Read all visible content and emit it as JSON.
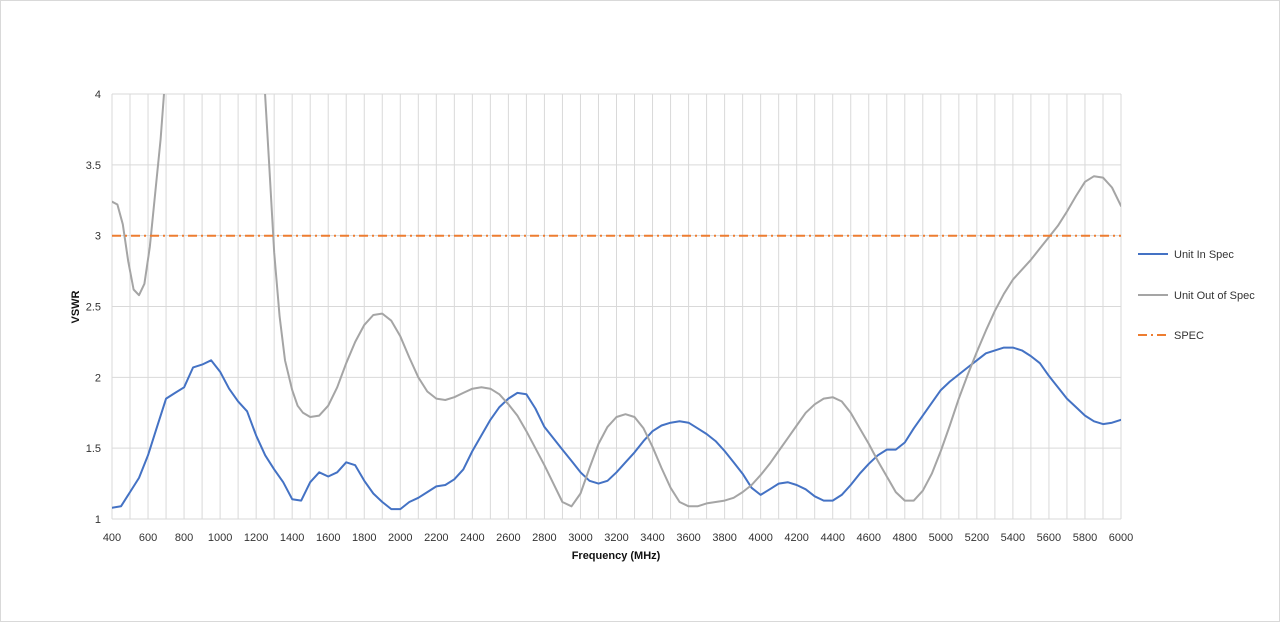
{
  "chart_data": {
    "type": "line",
    "title": "",
    "xlabel": "Frequency (MHz)",
    "ylabel": "VSWR",
    "xlim": [
      400,
      6000
    ],
    "ylim": [
      1,
      4
    ],
    "x_ticks": [
      400,
      600,
      800,
      1000,
      1200,
      1400,
      1600,
      1800,
      2000,
      2200,
      2400,
      2600,
      2800,
      3000,
      3200,
      3400,
      3600,
      3800,
      4000,
      4200,
      4400,
      4600,
      4800,
      5000,
      5200,
      5400,
      5600,
      5800,
      6000
    ],
    "x_tick_labels": [
      "400",
      "600",
      "800",
      "1000",
      "1200",
      "1400",
      "1600",
      "1800",
      "2000",
      "2200",
      "2400",
      "2600",
      "2800",
      "3000",
      "3200",
      "3400",
      "3600",
      "3800",
      "4000",
      "4200",
      "4400",
      "4600",
      "4800",
      "5000",
      "5200",
      "5400",
      "5600",
      "5800",
      "6000"
    ],
    "x_grid_step": 100,
    "y_ticks": [
      1,
      1.5,
      2,
      2.5,
      3,
      3.5,
      4
    ],
    "y_tick_labels": [
      "1",
      "1.5",
      "2",
      "2.5",
      "3",
      "3.5",
      "4"
    ],
    "grid": true,
    "legend_position": "right",
    "series": [
      {
        "name": "Unit In Spec",
        "color": "#4472C4",
        "style": "solid",
        "points": [
          [
            400,
            1.08
          ],
          [
            450,
            1.09
          ],
          [
            500,
            1.19
          ],
          [
            550,
            1.29
          ],
          [
            600,
            1.45
          ],
          [
            650,
            1.65
          ],
          [
            700,
            1.85
          ],
          [
            750,
            1.89
          ],
          [
            800,
            1.93
          ],
          [
            850,
            2.07
          ],
          [
            900,
            2.09
          ],
          [
            950,
            2.12
          ],
          [
            1000,
            2.04
          ],
          [
            1050,
            1.92
          ],
          [
            1100,
            1.83
          ],
          [
            1150,
            1.76
          ],
          [
            1200,
            1.59
          ],
          [
            1250,
            1.45
          ],
          [
            1300,
            1.35
          ],
          [
            1350,
            1.26
          ],
          [
            1400,
            1.14
          ],
          [
            1450,
            1.13
          ],
          [
            1500,
            1.26
          ],
          [
            1550,
            1.33
          ],
          [
            1600,
            1.3
          ],
          [
            1650,
            1.33
          ],
          [
            1700,
            1.4
          ],
          [
            1750,
            1.38
          ],
          [
            1800,
            1.27
          ],
          [
            1850,
            1.18
          ],
          [
            1900,
            1.12
          ],
          [
            1950,
            1.07
          ],
          [
            2000,
            1.07
          ],
          [
            2050,
            1.12
          ],
          [
            2100,
            1.15
          ],
          [
            2150,
            1.19
          ],
          [
            2200,
            1.23
          ],
          [
            2250,
            1.24
          ],
          [
            2300,
            1.28
          ],
          [
            2350,
            1.35
          ],
          [
            2400,
            1.48
          ],
          [
            2450,
            1.59
          ],
          [
            2500,
            1.7
          ],
          [
            2550,
            1.79
          ],
          [
            2600,
            1.85
          ],
          [
            2650,
            1.89
          ],
          [
            2700,
            1.88
          ],
          [
            2750,
            1.78
          ],
          [
            2800,
            1.65
          ],
          [
            2850,
            1.57
          ],
          [
            2900,
            1.49
          ],
          [
            2950,
            1.41
          ],
          [
            3000,
            1.33
          ],
          [
            3050,
            1.27
          ],
          [
            3100,
            1.25
          ],
          [
            3150,
            1.27
          ],
          [
            3200,
            1.33
          ],
          [
            3250,
            1.4
          ],
          [
            3300,
            1.47
          ],
          [
            3350,
            1.55
          ],
          [
            3400,
            1.62
          ],
          [
            3450,
            1.66
          ],
          [
            3500,
            1.68
          ],
          [
            3550,
            1.69
          ],
          [
            3600,
            1.68
          ],
          [
            3650,
            1.64
          ],
          [
            3700,
            1.6
          ],
          [
            3750,
            1.55
          ],
          [
            3800,
            1.48
          ],
          [
            3850,
            1.4
          ],
          [
            3900,
            1.32
          ],
          [
            3950,
            1.22
          ],
          [
            4000,
            1.17
          ],
          [
            4050,
            1.21
          ],
          [
            4100,
            1.25
          ],
          [
            4150,
            1.26
          ],
          [
            4200,
            1.24
          ],
          [
            4250,
            1.21
          ],
          [
            4300,
            1.16
          ],
          [
            4350,
            1.13
          ],
          [
            4400,
            1.13
          ],
          [
            4450,
            1.17
          ],
          [
            4500,
            1.24
          ],
          [
            4550,
            1.32
          ],
          [
            4600,
            1.39
          ],
          [
            4650,
            1.45
          ],
          [
            4700,
            1.49
          ],
          [
            4750,
            1.49
          ],
          [
            4800,
            1.54
          ],
          [
            4850,
            1.64
          ],
          [
            4900,
            1.73
          ],
          [
            4950,
            1.82
          ],
          [
            5000,
            1.91
          ],
          [
            5050,
            1.97
          ],
          [
            5100,
            2.02
          ],
          [
            5150,
            2.07
          ],
          [
            5200,
            2.12
          ],
          [
            5250,
            2.17
          ],
          [
            5300,
            2.19
          ],
          [
            5350,
            2.21
          ],
          [
            5400,
            2.21
          ],
          [
            5450,
            2.19
          ],
          [
            5500,
            2.15
          ],
          [
            5550,
            2.1
          ],
          [
            5600,
            2.01
          ],
          [
            5650,
            1.93
          ],
          [
            5700,
            1.85
          ],
          [
            5750,
            1.79
          ],
          [
            5800,
            1.73
          ],
          [
            5850,
            1.69
          ],
          [
            5900,
            1.67
          ],
          [
            5950,
            1.68
          ],
          [
            6000,
            1.7
          ]
        ]
      },
      {
        "name": "Unit Out of Spec",
        "color": "#A5A5A5",
        "style": "solid",
        "points": [
          [
            400,
            3.24
          ],
          [
            430,
            3.22
          ],
          [
            460,
            3.08
          ],
          [
            490,
            2.82
          ],
          [
            520,
            2.62
          ],
          [
            550,
            2.58
          ],
          [
            580,
            2.66
          ],
          [
            610,
            2.92
          ],
          [
            640,
            3.3
          ],
          [
            670,
            3.68
          ],
          [
            700,
            4.2
          ],
          [
            1240,
            4.2
          ],
          [
            1270,
            3.55
          ],
          [
            1300,
            2.88
          ],
          [
            1330,
            2.43
          ],
          [
            1360,
            2.12
          ],
          [
            1400,
            1.91
          ],
          [
            1430,
            1.8
          ],
          [
            1460,
            1.75
          ],
          [
            1500,
            1.72
          ],
          [
            1550,
            1.73
          ],
          [
            1600,
            1.8
          ],
          [
            1650,
            1.93
          ],
          [
            1700,
            2.1
          ],
          [
            1750,
            2.25
          ],
          [
            1800,
            2.37
          ],
          [
            1850,
            2.44
          ],
          [
            1900,
            2.45
          ],
          [
            1950,
            2.4
          ],
          [
            2000,
            2.29
          ],
          [
            2050,
            2.14
          ],
          [
            2100,
            2.0
          ],
          [
            2150,
            1.9
          ],
          [
            2200,
            1.85
          ],
          [
            2250,
            1.84
          ],
          [
            2300,
            1.86
          ],
          [
            2350,
            1.89
          ],
          [
            2400,
            1.92
          ],
          [
            2450,
            1.93
          ],
          [
            2500,
            1.92
          ],
          [
            2550,
            1.88
          ],
          [
            2600,
            1.81
          ],
          [
            2650,
            1.73
          ],
          [
            2700,
            1.62
          ],
          [
            2750,
            1.5
          ],
          [
            2800,
            1.38
          ],
          [
            2850,
            1.25
          ],
          [
            2900,
            1.12
          ],
          [
            2950,
            1.09
          ],
          [
            3000,
            1.18
          ],
          [
            3050,
            1.36
          ],
          [
            3100,
            1.53
          ],
          [
            3150,
            1.65
          ],
          [
            3200,
            1.72
          ],
          [
            3250,
            1.74
          ],
          [
            3300,
            1.72
          ],
          [
            3350,
            1.64
          ],
          [
            3400,
            1.51
          ],
          [
            3450,
            1.36
          ],
          [
            3500,
            1.22
          ],
          [
            3550,
            1.12
          ],
          [
            3600,
            1.09
          ],
          [
            3650,
            1.09
          ],
          [
            3700,
            1.11
          ],
          [
            3750,
            1.12
          ],
          [
            3800,
            1.13
          ],
          [
            3850,
            1.15
          ],
          [
            3900,
            1.19
          ],
          [
            3950,
            1.24
          ],
          [
            4000,
            1.31
          ],
          [
            4050,
            1.39
          ],
          [
            4100,
            1.48
          ],
          [
            4150,
            1.57
          ],
          [
            4200,
            1.66
          ],
          [
            4250,
            1.75
          ],
          [
            4300,
            1.81
          ],
          [
            4350,
            1.85
          ],
          [
            4400,
            1.86
          ],
          [
            4450,
            1.83
          ],
          [
            4500,
            1.75
          ],
          [
            4550,
            1.64
          ],
          [
            4600,
            1.53
          ],
          [
            4650,
            1.41
          ],
          [
            4700,
            1.3
          ],
          [
            4750,
            1.19
          ],
          [
            4800,
            1.13
          ],
          [
            4850,
            1.13
          ],
          [
            4900,
            1.2
          ],
          [
            4950,
            1.32
          ],
          [
            5000,
            1.48
          ],
          [
            5050,
            1.66
          ],
          [
            5100,
            1.85
          ],
          [
            5150,
            2.02
          ],
          [
            5200,
            2.18
          ],
          [
            5250,
            2.33
          ],
          [
            5300,
            2.47
          ],
          [
            5350,
            2.59
          ],
          [
            5400,
            2.69
          ],
          [
            5450,
            2.76
          ],
          [
            5500,
            2.83
          ],
          [
            5550,
            2.91
          ],
          [
            5600,
            2.99
          ],
          [
            5650,
            3.07
          ],
          [
            5700,
            3.17
          ],
          [
            5750,
            3.28
          ],
          [
            5800,
            3.38
          ],
          [
            5850,
            3.42
          ],
          [
            5900,
            3.41
          ],
          [
            5950,
            3.34
          ],
          [
            6000,
            3.21
          ]
        ]
      },
      {
        "name": "SPEC",
        "color": "#ED7D31",
        "style": "dash-dot",
        "points": [
          [
            400,
            3
          ],
          [
            6000,
            3
          ]
        ]
      }
    ]
  }
}
